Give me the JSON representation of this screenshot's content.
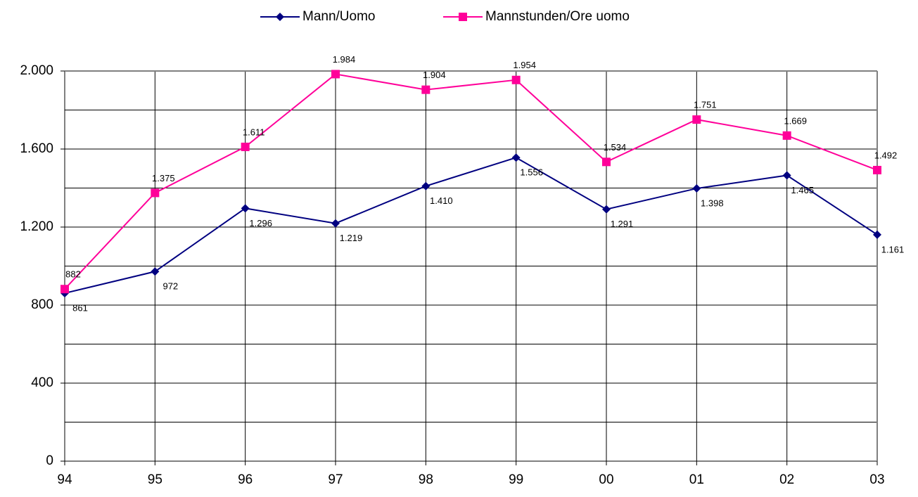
{
  "chart_data": {
    "type": "line",
    "categories": [
      "94",
      "95",
      "96",
      "97",
      "98",
      "99",
      "00",
      "01",
      "02",
      "03"
    ],
    "series": [
      {
        "name": "Mann/Uomo",
        "color": "#000080",
        "marker": "diamond",
        "values": [
          861,
          972,
          1296,
          1219,
          1410,
          1556,
          1291,
          1398,
          1465,
          1161
        ],
        "value_labels": [
          "861",
          "972",
          "1.296",
          "1.219",
          "1.410",
          "1.556",
          "1.291",
          "1.398",
          "1.465",
          "1.161"
        ]
      },
      {
        "name": "Mannstunden/Ore uomo",
        "color": "#ff0099",
        "marker": "square",
        "values": [
          882,
          1375,
          1611,
          1984,
          1904,
          1954,
          1534,
          1751,
          1669,
          1492
        ],
        "value_labels": [
          "882",
          "1.375",
          "1.611",
          "1.984",
          "1.904",
          "1.954",
          "1.534",
          "1.751",
          "1.669",
          "1.492"
        ]
      }
    ],
    "ylim": [
      0,
      2000
    ],
    "yticks": [
      0,
      400,
      800,
      {
        "value": 1200,
        "label": "1.200"
      },
      {
        "value": 1600,
        "label": "1.600"
      },
      {
        "value": 2000,
        "label": "2.000"
      }
    ],
    "minor_yticks": [
      200,
      600,
      1000,
      1400,
      1800
    ],
    "grid": true,
    "legend": "top"
  }
}
